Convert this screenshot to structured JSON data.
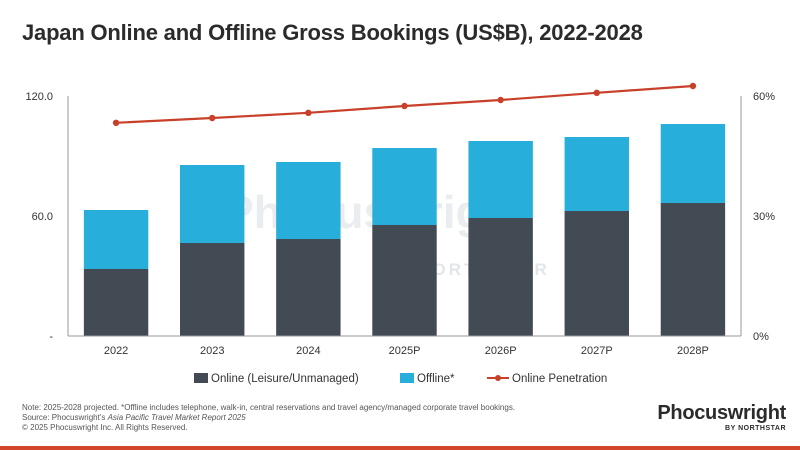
{
  "title": "Japan Online and Offline Gross Bookings (US$B), 2022-2028",
  "colors": {
    "online": "#424b54",
    "offline": "#27aedb",
    "penetration": "#c8402a",
    "axis": "#999999",
    "accent_rule": "#d4462c"
  },
  "axes": {
    "left_ticks": [
      "120.0",
      "60.0",
      "-"
    ],
    "right_ticks": [
      "60%",
      "30%",
      "0%"
    ]
  },
  "legend": {
    "online": "Online (Leisure/Unmanaged)",
    "offline": "Offline*",
    "penetration": "Online Penetration"
  },
  "watermark": {
    "main": "Phocuswright",
    "sub": "BY NORTHSTAR"
  },
  "notes": {
    "line1": "Note: 2025-2028 projected. *Offline includes telephone, walk-in, central reservations and travel agency/managed corporate travel bookings.",
    "line2_prefix": "Source: Phocuswright's ",
    "line2_italic": "Asia Pacific Travel Market Report 2025",
    "line3": "© 2025 Phocuswright Inc. All Rights Reserved."
  },
  "brand": {
    "name": "Phocuswright",
    "sub": "BY NORTHSTAR"
  },
  "chart_data": {
    "type": "bar",
    "stacked": true,
    "title": "Japan Online and Offline Gross Bookings (US$B), 2022-2028",
    "categories": [
      "2022",
      "2023",
      "2024",
      "2025P",
      "2026P",
      "2027P",
      "2028P"
    ],
    "series": [
      {
        "name": "Online (Leisure/Unmanaged)",
        "type": "bar",
        "axis": "left",
        "values": [
          33.5,
          46.5,
          48.5,
          55.5,
          59.0,
          62.5,
          66.5
        ]
      },
      {
        "name": "Offline*",
        "type": "bar",
        "axis": "left",
        "values": [
          29.5,
          39.0,
          38.5,
          38.5,
          38.5,
          37.0,
          39.5
        ]
      },
      {
        "name": "Online Penetration",
        "type": "line",
        "axis": "right",
        "values": [
          53.3,
          54.5,
          55.8,
          57.5,
          59.0,
          60.8,
          62.5
        ],
        "unit": "%"
      }
    ],
    "ylim_left": [
      0,
      120
    ],
    "ylim_right": [
      0,
      60
    ],
    "grid": false,
    "legend_position": "bottom"
  }
}
